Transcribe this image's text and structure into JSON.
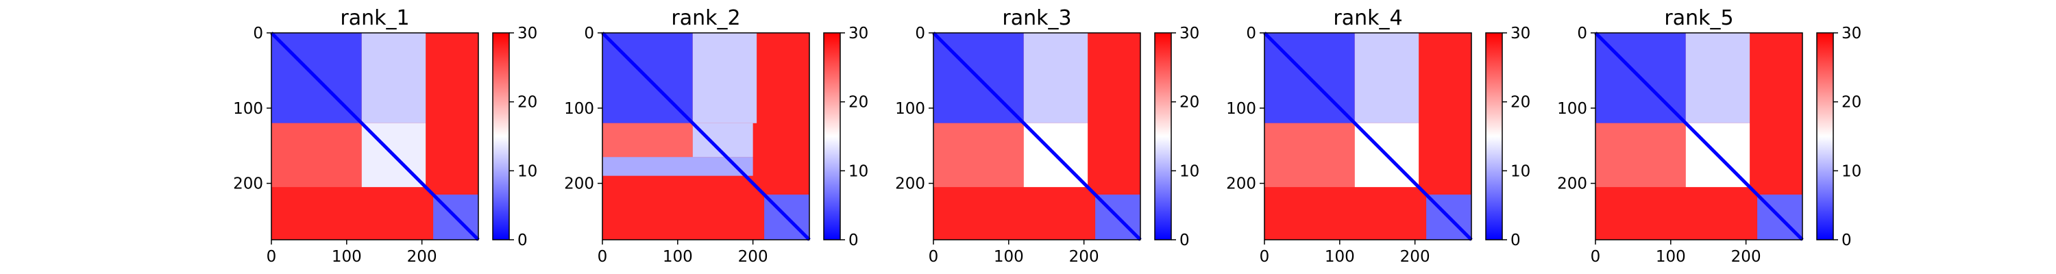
{
  "colors": {
    "low": "#0000ff",
    "mid": "#ffffff",
    "high": "#ff0000",
    "axis": "#000000"
  },
  "chart_data": [
    {
      "type": "heatmap",
      "title": "rank_1",
      "matrix_size": 275,
      "xlim": [
        0,
        275
      ],
      "ylim": [
        275,
        0
      ],
      "xticks": [
        0,
        100,
        200
      ],
      "yticks": [
        0,
        100,
        200
      ],
      "colorbar": {
        "vmin": 0,
        "vmax": 30,
        "ticks": [
          0,
          10,
          20,
          30
        ]
      },
      "colormap": "bwr",
      "xlabel": "",
      "ylabel": "",
      "blocks": [
        {
          "x0": 0,
          "x1": 275,
          "y0": 0,
          "y1": 275,
          "value": 28
        },
        {
          "x0": 0,
          "x1": 120,
          "y0": 0,
          "y1": 120,
          "value": 4
        },
        {
          "x0": 120,
          "x1": 205,
          "y0": 0,
          "y1": 120,
          "value": 12
        },
        {
          "x0": 0,
          "x1": 120,
          "y0": 120,
          "y1": 205,
          "value": 25
        },
        {
          "x0": 120,
          "x1": 205,
          "y0": 120,
          "y1": 205,
          "value": 14
        },
        {
          "x0": 215,
          "x1": 275,
          "y0": 215,
          "y1": 275,
          "value": 6
        }
      ]
    },
    {
      "type": "heatmap",
      "title": "rank_2",
      "matrix_size": 275,
      "xlim": [
        0,
        275
      ],
      "ylim": [
        275,
        0
      ],
      "xticks": [
        0,
        100,
        200
      ],
      "yticks": [
        0,
        100,
        200
      ],
      "colorbar": {
        "vmin": 0,
        "vmax": 30,
        "ticks": [
          0,
          10,
          20,
          30
        ]
      },
      "colormap": "bwr",
      "xlabel": "",
      "ylabel": "",
      "blocks": [
        {
          "x0": 0,
          "x1": 275,
          "y0": 0,
          "y1": 275,
          "value": 28
        },
        {
          "x0": 0,
          "x1": 120,
          "y0": 0,
          "y1": 120,
          "value": 4
        },
        {
          "x0": 120,
          "x1": 205,
          "y0": 0,
          "y1": 120,
          "value": 12
        },
        {
          "x0": 0,
          "x1": 120,
          "y0": 120,
          "y1": 165,
          "value": 24
        },
        {
          "x0": 0,
          "x1": 200,
          "y0": 165,
          "y1": 190,
          "value": 10
        },
        {
          "x0": 120,
          "x1": 200,
          "y0": 120,
          "y1": 165,
          "value": 12
        },
        {
          "x0": 215,
          "x1": 275,
          "y0": 215,
          "y1": 275,
          "value": 6
        }
      ]
    },
    {
      "type": "heatmap",
      "title": "rank_3",
      "matrix_size": 275,
      "xlim": [
        0,
        275
      ],
      "ylim": [
        275,
        0
      ],
      "xticks": [
        0,
        100,
        200
      ],
      "yticks": [
        0,
        100,
        200
      ],
      "colorbar": {
        "vmin": 0,
        "vmax": 30,
        "ticks": [
          0,
          10,
          20,
          30
        ]
      },
      "colormap": "bwr",
      "xlabel": "",
      "ylabel": "",
      "blocks": [
        {
          "x0": 0,
          "x1": 275,
          "y0": 0,
          "y1": 275,
          "value": 28
        },
        {
          "x0": 0,
          "x1": 120,
          "y0": 0,
          "y1": 120,
          "value": 4
        },
        {
          "x0": 120,
          "x1": 205,
          "y0": 0,
          "y1": 120,
          "value": 12
        },
        {
          "x0": 0,
          "x1": 120,
          "y0": 120,
          "y1": 205,
          "value": 24
        },
        {
          "x0": 120,
          "x1": 205,
          "y0": 120,
          "y1": 205,
          "value": 15
        },
        {
          "x0": 215,
          "x1": 275,
          "y0": 215,
          "y1": 275,
          "value": 6
        }
      ]
    },
    {
      "type": "heatmap",
      "title": "rank_4",
      "matrix_size": 275,
      "xlim": [
        0,
        275
      ],
      "ylim": [
        275,
        0
      ],
      "xticks": [
        0,
        100,
        200
      ],
      "yticks": [
        0,
        100,
        200
      ],
      "colorbar": {
        "vmin": 0,
        "vmax": 30,
        "ticks": [
          0,
          10,
          20,
          30
        ]
      },
      "colormap": "bwr",
      "xlabel": "",
      "ylabel": "",
      "blocks": [
        {
          "x0": 0,
          "x1": 275,
          "y0": 0,
          "y1": 275,
          "value": 28
        },
        {
          "x0": 0,
          "x1": 120,
          "y0": 0,
          "y1": 120,
          "value": 4
        },
        {
          "x0": 120,
          "x1": 205,
          "y0": 0,
          "y1": 120,
          "value": 12
        },
        {
          "x0": 0,
          "x1": 120,
          "y0": 120,
          "y1": 205,
          "value": 24
        },
        {
          "x0": 120,
          "x1": 205,
          "y0": 120,
          "y1": 205,
          "value": 15
        },
        {
          "x0": 215,
          "x1": 275,
          "y0": 215,
          "y1": 275,
          "value": 6
        }
      ]
    },
    {
      "type": "heatmap",
      "title": "rank_5",
      "matrix_size": 275,
      "xlim": [
        0,
        275
      ],
      "ylim": [
        275,
        0
      ],
      "xticks": [
        0,
        100,
        200
      ],
      "yticks": [
        0,
        100,
        200
      ],
      "colorbar": {
        "vmin": 0,
        "vmax": 30,
        "ticks": [
          0,
          10,
          20,
          30
        ]
      },
      "colormap": "bwr",
      "xlabel": "",
      "ylabel": "",
      "blocks": [
        {
          "x0": 0,
          "x1": 275,
          "y0": 0,
          "y1": 275,
          "value": 28
        },
        {
          "x0": 0,
          "x1": 120,
          "y0": 0,
          "y1": 120,
          "value": 4
        },
        {
          "x0": 120,
          "x1": 205,
          "y0": 0,
          "y1": 120,
          "value": 12
        },
        {
          "x0": 0,
          "x1": 120,
          "y0": 120,
          "y1": 205,
          "value": 24
        },
        {
          "x0": 120,
          "x1": 205,
          "y0": 120,
          "y1": 205,
          "value": 15
        },
        {
          "x0": 215,
          "x1": 275,
          "y0": 215,
          "y1": 275,
          "value": 6
        }
      ]
    }
  ]
}
